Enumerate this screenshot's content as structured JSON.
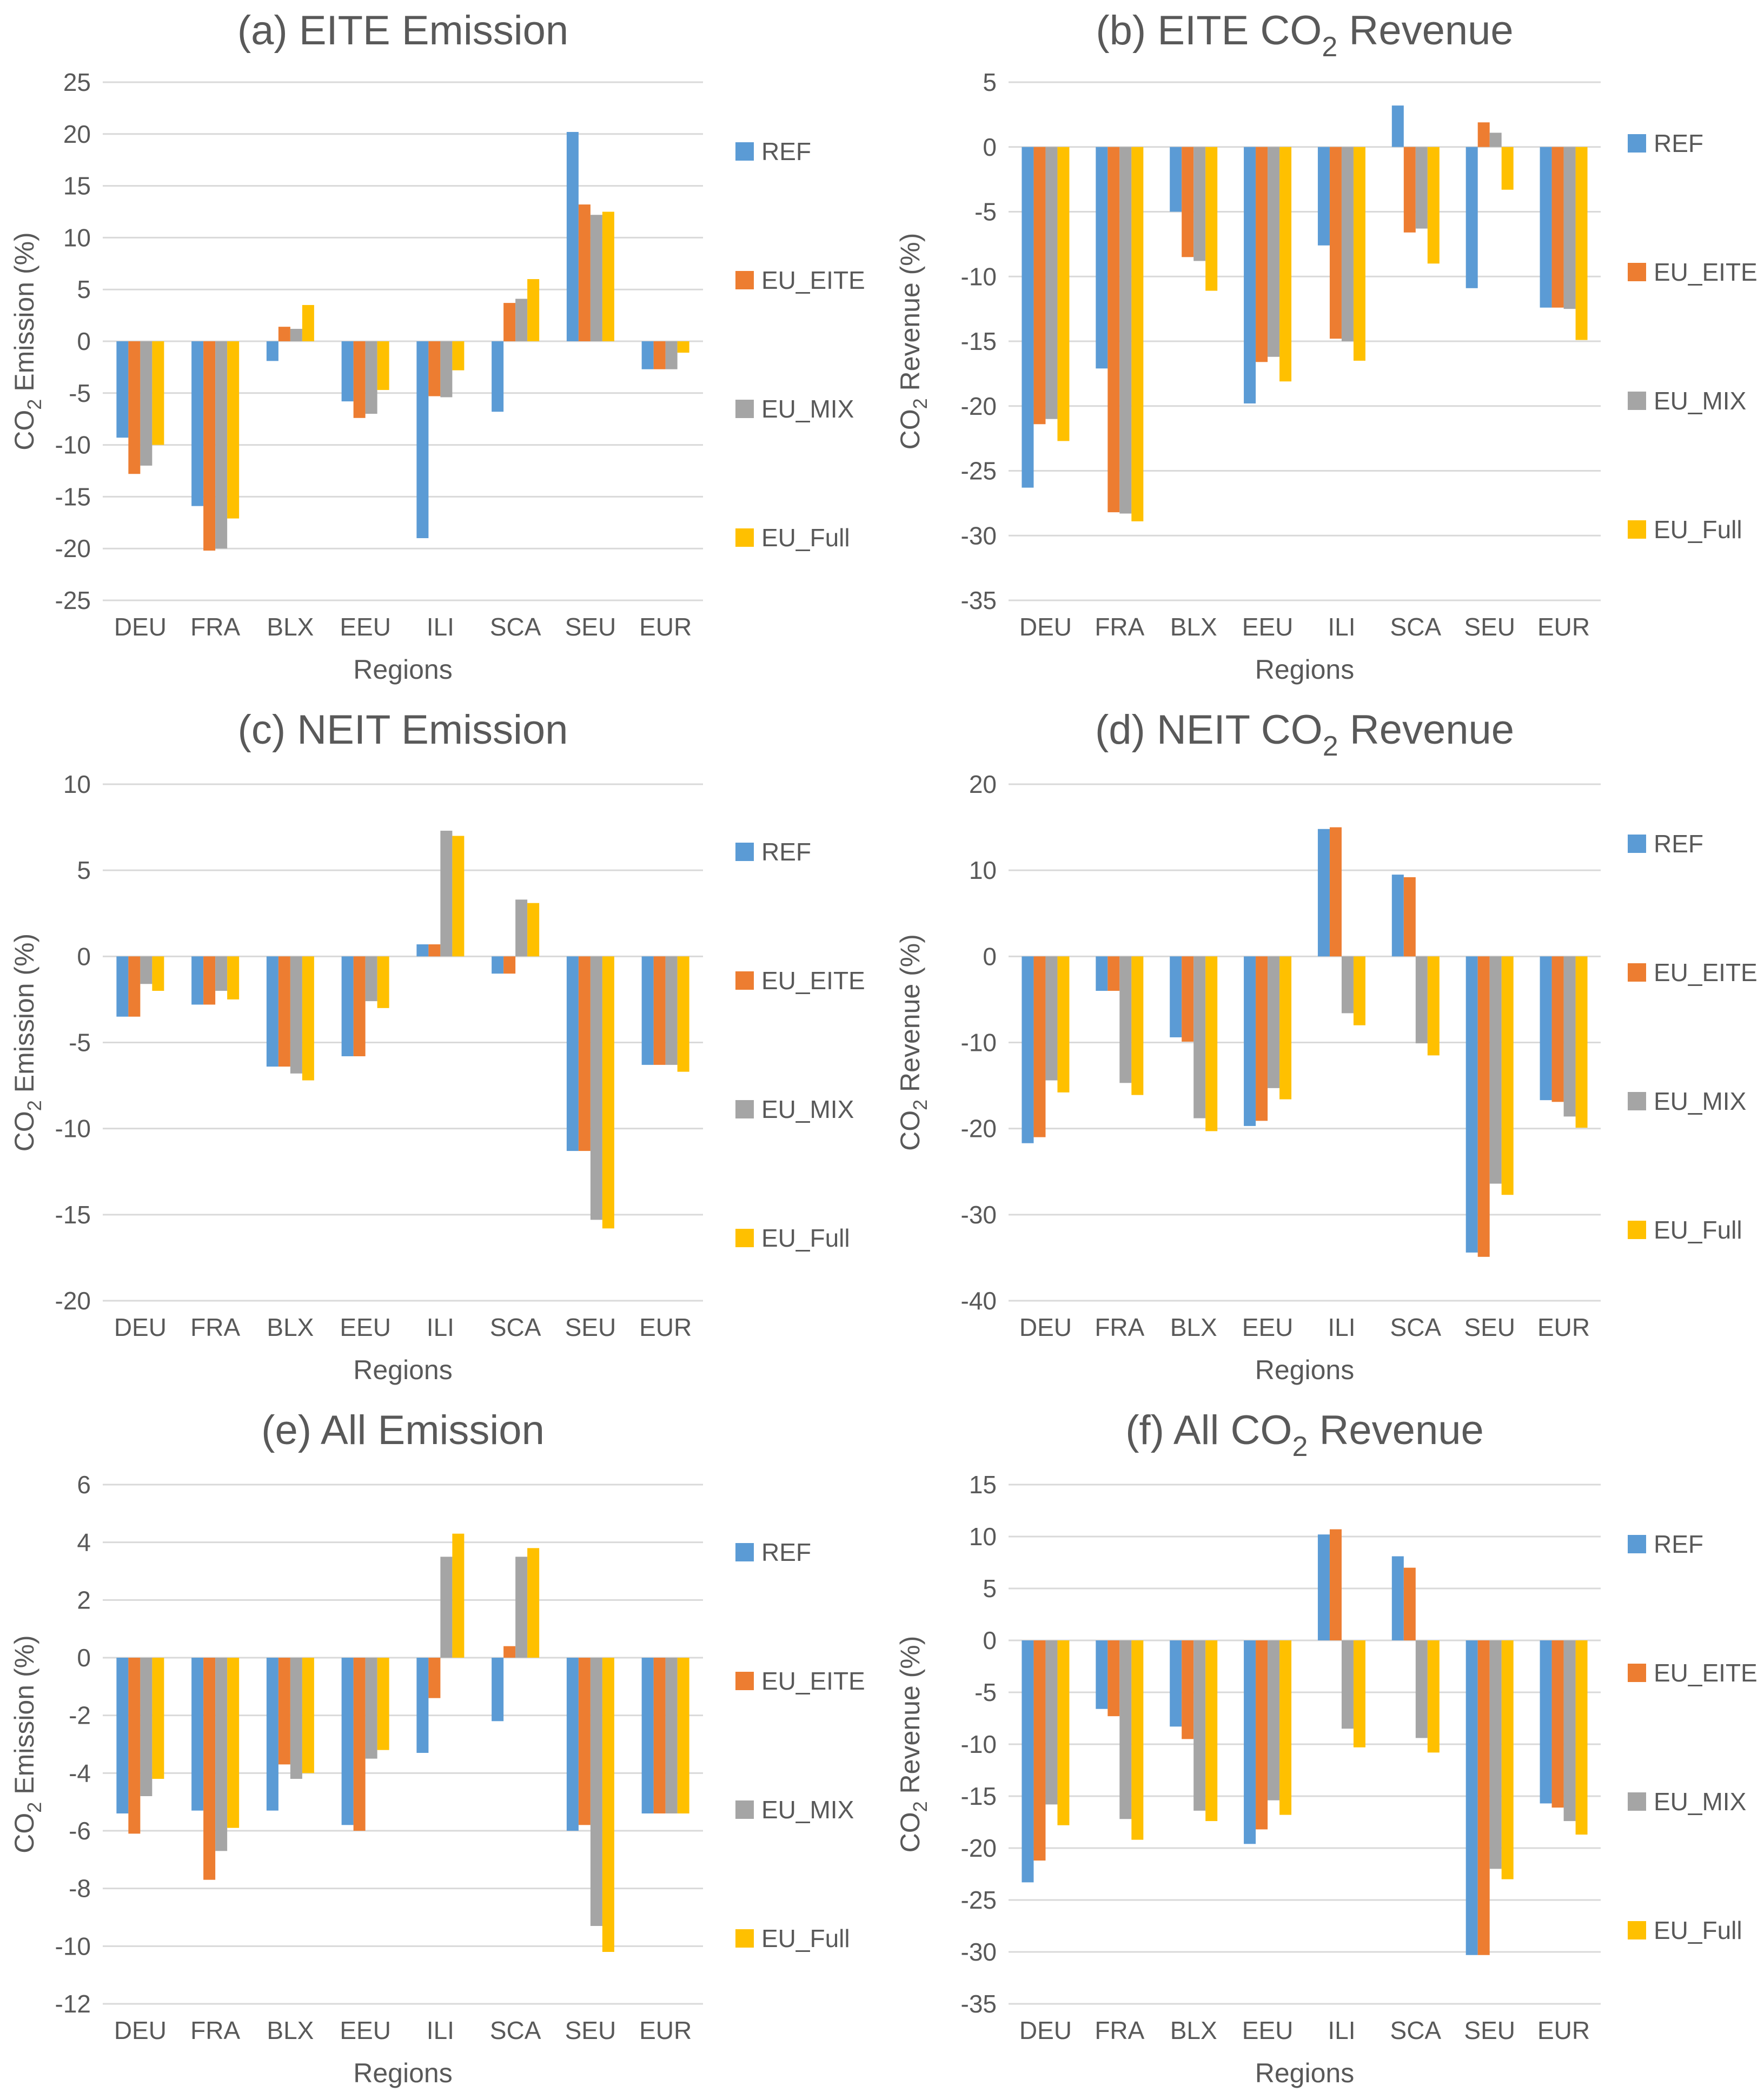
{
  "palette": {
    "REF": "#5b9bd5",
    "EU_EITE": "#ed7d31",
    "EU_MIX": "#a5a5a5",
    "EU_Full": "#ffc000"
  },
  "legend": [
    "REF",
    "EU_EITE",
    "EU_MIX",
    "EU_Full"
  ],
  "chart_data": [
    {
      "type": "bar",
      "title": "(a) EITE Emission",
      "title_sub": "",
      "title_tail": "",
      "xlabel": "Regions",
      "ylabel_pre": "CO",
      "ylabel_sub": "2",
      "ylabel_post": " Emission (%)",
      "ylim": [
        -25,
        25
      ],
      "ytick_step": 5,
      "categories": [
        "DEU",
        "FRA",
        "BLX",
        "EEU",
        "ILI",
        "SCA",
        "SEU",
        "EUR"
      ],
      "series": [
        {
          "name": "REF",
          "values": [
            -9.3,
            -15.9,
            -1.9,
            -5.8,
            -19.0,
            -6.8,
            20.2,
            -2.7
          ]
        },
        {
          "name": "EU_EITE",
          "values": [
            -12.8,
            -20.2,
            1.4,
            -7.4,
            -5.3,
            3.7,
            13.2,
            -2.7
          ]
        },
        {
          "name": "EU_MIX",
          "values": [
            -12.0,
            -20.0,
            1.2,
            -7.0,
            -5.4,
            4.1,
            12.2,
            -2.7
          ]
        },
        {
          "name": "EU_Full",
          "values": [
            -10.0,
            -17.1,
            3.5,
            -4.7,
            -2.8,
            6.0,
            12.5,
            -1.1
          ]
        }
      ]
    },
    {
      "type": "bar",
      "title": "(b) EITE CO",
      "title_sub": "2",
      "title_tail": " Revenue",
      "xlabel": "Regions",
      "ylabel_pre": "CO",
      "ylabel_sub": "2",
      "ylabel_post": " Revenue (%)",
      "ylim": [
        -35,
        5
      ],
      "ytick_step": 5,
      "categories": [
        "DEU",
        "FRA",
        "BLX",
        "EEU",
        "ILI",
        "SCA",
        "SEU",
        "EUR"
      ],
      "series": [
        {
          "name": "REF",
          "values": [
            -26.3,
            -17.1,
            -5.0,
            -19.8,
            -7.6,
            3.2,
            -10.9,
            -12.4
          ]
        },
        {
          "name": "EU_EITE",
          "values": [
            -21.4,
            -28.2,
            -8.5,
            -16.6,
            -14.8,
            -6.6,
            1.9,
            -12.4
          ]
        },
        {
          "name": "EU_MIX",
          "values": [
            -21.0,
            -28.3,
            -8.8,
            -16.2,
            -15.0,
            -6.3,
            1.1,
            -12.5
          ]
        },
        {
          "name": "EU_Full",
          "values": [
            -22.7,
            -28.9,
            -11.1,
            -18.1,
            -16.5,
            -9.0,
            -3.3,
            -14.9
          ]
        }
      ]
    },
    {
      "type": "bar",
      "title": "(c) NEIT Emission",
      "title_sub": "",
      "title_tail": "",
      "xlabel": "Regions",
      "ylabel_pre": "CO",
      "ylabel_sub": "2",
      "ylabel_post": " Emission (%)",
      "ylim": [
        -20,
        10
      ],
      "ytick_step": 5,
      "categories": [
        "DEU",
        "FRA",
        "BLX",
        "EEU",
        "ILI",
        "SCA",
        "SEU",
        "EUR"
      ],
      "series": [
        {
          "name": "REF",
          "values": [
            -3.5,
            -2.8,
            -6.4,
            -5.8,
            0.7,
            -1.0,
            -11.3,
            -6.3
          ]
        },
        {
          "name": "EU_EITE",
          "values": [
            -3.5,
            -2.8,
            -6.4,
            -5.8,
            0.7,
            -1.0,
            -11.3,
            -6.3
          ]
        },
        {
          "name": "EU_MIX",
          "values": [
            -1.6,
            -2.0,
            -6.8,
            -2.6,
            7.3,
            3.3,
            -15.3,
            -6.3
          ]
        },
        {
          "name": "EU_Full",
          "values": [
            -2.0,
            -2.5,
            -7.2,
            -3.0,
            7.0,
            3.1,
            -15.8,
            -6.7
          ]
        }
      ]
    },
    {
      "type": "bar",
      "title": "(d) NEIT CO",
      "title_sub": "2",
      "title_tail": " Revenue",
      "xlabel": "Regions",
      "ylabel_pre": "CO",
      "ylabel_sub": "2",
      "ylabel_post": " Revenue (%)",
      "ylim": [
        -40,
        20
      ],
      "ytick_step": 10,
      "categories": [
        "DEU",
        "FRA",
        "BLX",
        "EEU",
        "ILI",
        "SCA",
        "SEU",
        "EUR"
      ],
      "series": [
        {
          "name": "REF",
          "values": [
            -21.7,
            -4.0,
            -9.4,
            -19.7,
            14.8,
            9.5,
            -34.4,
            -16.7
          ]
        },
        {
          "name": "EU_EITE",
          "values": [
            -21.0,
            -4.0,
            -9.9,
            -19.1,
            15.0,
            9.2,
            -34.9,
            -16.9
          ]
        },
        {
          "name": "EU_MIX",
          "values": [
            -14.4,
            -14.7,
            -18.8,
            -15.3,
            -6.6,
            -10.1,
            -26.4,
            -18.6
          ]
        },
        {
          "name": "EU_Full",
          "values": [
            -15.8,
            -16.1,
            -20.3,
            -16.6,
            -8.0,
            -11.5,
            -27.7,
            -19.9
          ]
        }
      ]
    },
    {
      "type": "bar",
      "title": "(e) All Emission",
      "title_sub": "",
      "title_tail": "",
      "xlabel": "Regions",
      "ylabel_pre": "CO",
      "ylabel_sub": "2",
      "ylabel_post": " Emission (%)",
      "ylim": [
        -12,
        6
      ],
      "ytick_step": 2,
      "categories": [
        "DEU",
        "FRA",
        "BLX",
        "EEU",
        "ILI",
        "SCA",
        "SEU",
        "EUR"
      ],
      "series": [
        {
          "name": "REF",
          "values": [
            -5.4,
            -5.3,
            -5.3,
            -5.8,
            -3.3,
            -2.2,
            -6.0,
            -5.4
          ]
        },
        {
          "name": "EU_EITE",
          "values": [
            -6.1,
            -7.7,
            -3.7,
            -6.0,
            -1.4,
            0.4,
            -5.8,
            -5.4
          ]
        },
        {
          "name": "EU_MIX",
          "values": [
            -4.8,
            -6.7,
            -4.2,
            -3.5,
            3.5,
            3.5,
            -9.3,
            -5.4
          ]
        },
        {
          "name": "EU_Full",
          "values": [
            -4.2,
            -5.9,
            -4.0,
            -3.2,
            4.3,
            3.8,
            -10.2,
            -5.4
          ]
        }
      ]
    },
    {
      "type": "bar",
      "title": "(f) All CO",
      "title_sub": "2",
      "title_tail": " Revenue",
      "xlabel": "Regions",
      "ylabel_pre": "CO",
      "ylabel_sub": "2",
      "ylabel_post": " Revenue (%)",
      "ylim": [
        -35,
        15
      ],
      "ytick_step": 5,
      "categories": [
        "DEU",
        "FRA",
        "BLX",
        "EEU",
        "ILI",
        "SCA",
        "SEU",
        "EUR"
      ],
      "series": [
        {
          "name": "REF",
          "values": [
            -23.3,
            -6.6,
            -8.3,
            -19.6,
            10.2,
            8.1,
            -30.3,
            -15.7
          ]
        },
        {
          "name": "EU_EITE",
          "values": [
            -21.2,
            -7.3,
            -9.5,
            -18.2,
            10.7,
            7.0,
            -30.3,
            -16.1
          ]
        },
        {
          "name": "EU_MIX",
          "values": [
            -15.8,
            -17.2,
            -16.4,
            -15.4,
            -8.5,
            -9.4,
            -22.0,
            -17.4
          ]
        },
        {
          "name": "EU_Full",
          "values": [
            -17.8,
            -19.2,
            -17.4,
            -16.8,
            -10.3,
            -10.8,
            -23.0,
            -18.7
          ]
        }
      ]
    }
  ]
}
